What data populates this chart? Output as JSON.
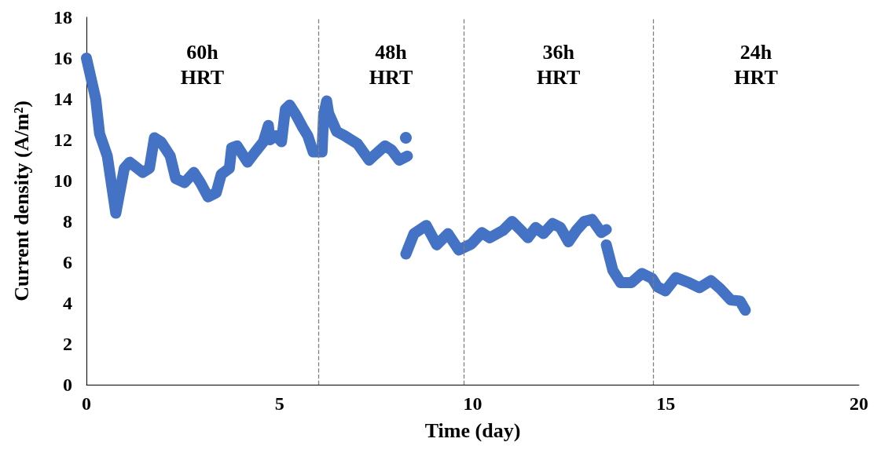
{
  "chart_data": {
    "type": "line",
    "xlabel": "Time (day)",
    "ylabel": "Current density (A/m²)",
    "xlim": [
      0,
      20
    ],
    "xticks": [
      0,
      5,
      10,
      15,
      20
    ],
    "ylim": [
      0,
      18
    ],
    "yticks": [
      0,
      2,
      4,
      6,
      8,
      10,
      12,
      14,
      16,
      18
    ],
    "grid": false,
    "marker": "none",
    "line_style": "solid",
    "series": [
      {
        "color": "#4472c4",
        "x": [
          0,
          0.24,
          0.34,
          0.54,
          0.76,
          0.98,
          1.12,
          1.46,
          1.63,
          1.76,
          1.93,
          2.17,
          2.31,
          2.54,
          2.78,
          2.95,
          3.15,
          3.36,
          3.49,
          3.7,
          3.76,
          3.9,
          4.17,
          4.37,
          4.58,
          4.71,
          4.75,
          4.92,
          5.05,
          5.15,
          5.26,
          5.43,
          5.6,
          5.73,
          5.87,
          6.1,
          6.14,
          6.22,
          6.27,
          6.48,
          6.68,
          7.02,
          7.32,
          7.49,
          7.73,
          7.9,
          8.1,
          8.31
        ],
        "values": [
          16,
          14,
          12.3,
          11.2,
          8.4,
          10.6,
          10.9,
          10.4,
          10.6,
          12.1,
          11.9,
          11.2,
          10.1,
          9.9,
          10.4,
          9.9,
          9.2,
          9.4,
          10.3,
          10.6,
          11.6,
          11.7,
          10.9,
          11.4,
          11.9,
          12.7,
          12,
          12.2,
          11.9,
          13.5,
          13.7,
          13.2,
          12.6,
          12.2,
          11.4,
          11.4,
          13.2,
          13.9,
          13.3,
          12.4,
          12.2,
          11.8,
          11,
          11.3,
          11.7,
          11.5,
          11,
          11.2
        ]
      },
      {
        "type": "scatter",
        "marker": "circle",
        "color": "#4472c4",
        "x": [
          8.27
        ],
        "values": [
          12.1
        ]
      },
      {
        "color": "#4472c4",
        "x": [
          8.27,
          8.48,
          8.8,
          9.07,
          9.36,
          9.64,
          9.97,
          10.24,
          10.44,
          10.78,
          11.02,
          11.26,
          11.43,
          11.63,
          11.83,
          12.07,
          12.27,
          12.48,
          12.68,
          12.89,
          13.09,
          13.33,
          13.46
        ],
        "values": [
          6.4,
          7.4,
          7.8,
          6.85,
          7.4,
          6.6,
          6.9,
          7.45,
          7.2,
          7.55,
          8,
          7.55,
          7.2,
          7.7,
          7.4,
          7.9,
          7.7,
          7,
          7.55,
          8,
          8.1,
          7.45,
          7.6
        ]
      },
      {
        "color": "#4472c4",
        "x": [
          13.46,
          13.63,
          13.83,
          14.11,
          14.38,
          14.65,
          14.78,
          14.99,
          15.26,
          15.6,
          15.87,
          16.17,
          16.41,
          16.68,
          16.92,
          17.06
        ],
        "values": [
          6.85,
          5.6,
          5,
          5,
          5.45,
          5.2,
          4.8,
          4.6,
          5.25,
          5,
          4.75,
          5.1,
          4.7,
          4.15,
          4.1,
          3.65
        ]
      }
    ],
    "ref_lines": [
      {
        "axis": "x",
        "value": 6,
        "color": "#808080",
        "line_style": "dashed"
      },
      {
        "axis": "x",
        "value": 9.77,
        "color": "#808080",
        "line_style": "dashed"
      },
      {
        "axis": "x",
        "value": 14.67,
        "color": "#808080",
        "line_style": "dashed"
      }
    ],
    "annotations": [
      "60h\nHRT",
      "48h\nHRT",
      "36h\nHRT",
      "24h\nHRT"
    ]
  }
}
